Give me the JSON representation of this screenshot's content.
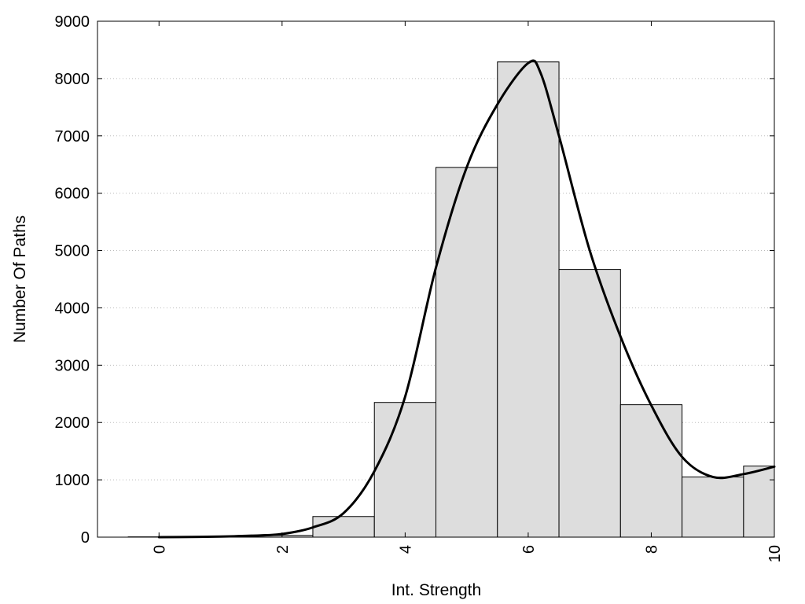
{
  "chart_data": {
    "type": "bar",
    "title": "",
    "xlabel": "Int. Strength",
    "ylabel": "Number Of Paths",
    "xlim": [
      -1,
      10
    ],
    "ylim": [
      0,
      9000
    ],
    "x_ticks": [
      0,
      2,
      4,
      6,
      8,
      10
    ],
    "x_tick_labels": [
      "0",
      "2",
      "4",
      "6",
      "8",
      "10"
    ],
    "y_ticks": [
      0,
      1000,
      2000,
      3000,
      4000,
      5000,
      6000,
      7000,
      8000,
      9000
    ],
    "y_tick_labels": [
      "0",
      "1000",
      "2000",
      "3000",
      "4000",
      "5000",
      "6000",
      "7000",
      "8000",
      "9000"
    ],
    "grid": "horizontal-dotted",
    "bar_width": 1,
    "bars": {
      "x": [
        0,
        1,
        2,
        3,
        4,
        5,
        6,
        7,
        8,
        9,
        10
      ],
      "values": [
        5,
        10,
        30,
        360,
        2350,
        6450,
        8290,
        4670,
        2310,
        1050,
        1240
      ],
      "color": "#dddddd",
      "edge_color": "#000000"
    },
    "curve": {
      "x": [
        0,
        0.5,
        1,
        1.5,
        2,
        2.5,
        3,
        3.5,
        4,
        4.5,
        5,
        5.5,
        6,
        6.2,
        6.5,
        7,
        7.5,
        8,
        8.5,
        9,
        9.5,
        10
      ],
      "values": [
        0,
        3,
        10,
        25,
        55,
        170,
        420,
        1150,
        2450,
        4700,
        6450,
        7550,
        8270,
        8100,
        7000,
        5000,
        3500,
        2300,
        1400,
        1050,
        1100,
        1230
      ],
      "color": "#000000"
    }
  }
}
